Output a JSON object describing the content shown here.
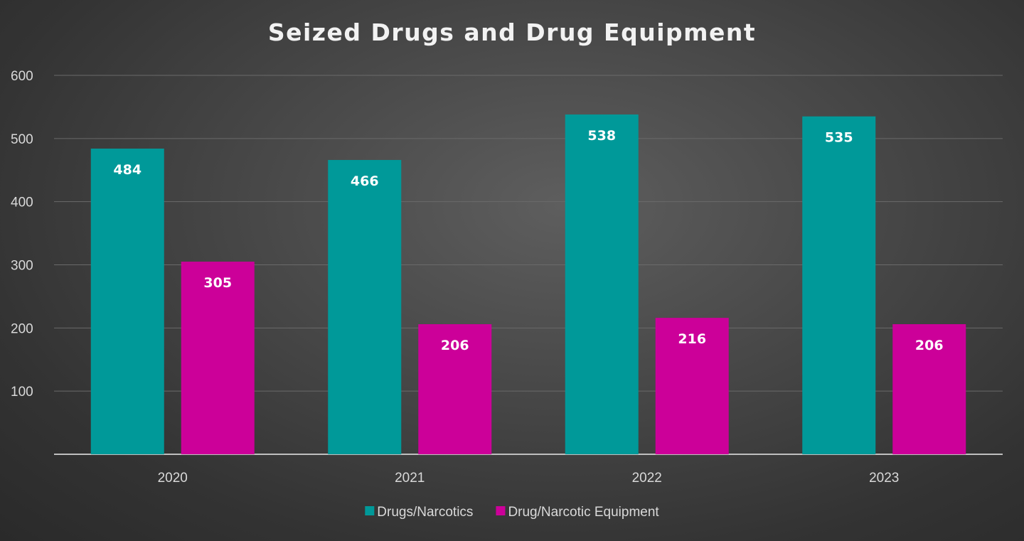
{
  "chart_data": {
    "type": "bar",
    "title": "Seized Drugs and Drug Equipment",
    "xlabel": "",
    "ylabel": "",
    "categories": [
      "2020",
      "2021",
      "2022",
      "2023"
    ],
    "series": [
      {
        "name": "Drugs/Narcotics",
        "color": "#009999",
        "values": [
          484,
          466,
          538,
          535
        ]
      },
      {
        "name": "Drug/Narcotic Equipment",
        "color": "#cc0099",
        "values": [
          305,
          206,
          216,
          206
        ]
      }
    ],
    "ylim": [
      0,
      600
    ],
    "yticks": [
      100,
      200,
      300,
      400,
      500,
      600
    ],
    "grid": true,
    "legend": "bottom",
    "data_labels": "inside-end"
  }
}
